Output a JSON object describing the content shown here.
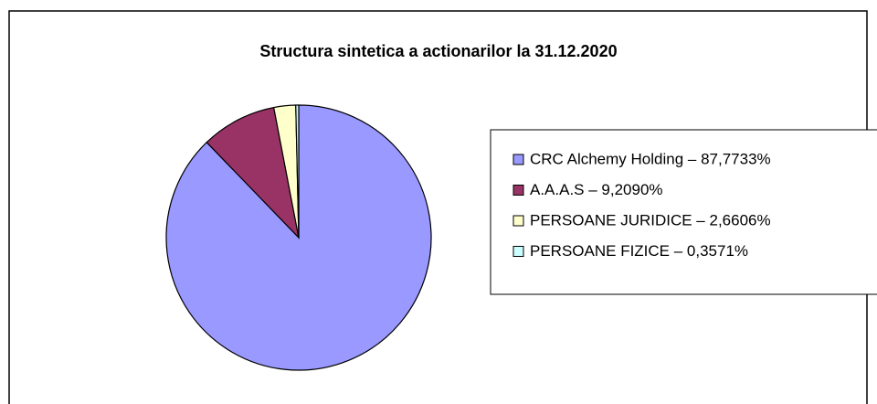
{
  "chart_data": {
    "type": "pie",
    "title": "Structura sintetica a actionarilor la 31.12.2020",
    "categories": [
      "CRC Alchemy Holding – 87,7733%",
      "A.A.A.S – 9,2090%",
      "PERSOANE JURIDICE – 2,6606%",
      "PERSOANE FIZICE – 0,3571%"
    ],
    "values": [
      87.7733,
      9.209,
      2.6606,
      0.3571
    ],
    "colors": [
      "#9999ff",
      "#993366",
      "#ffffcc",
      "#ccffff"
    ],
    "legend": "right"
  }
}
